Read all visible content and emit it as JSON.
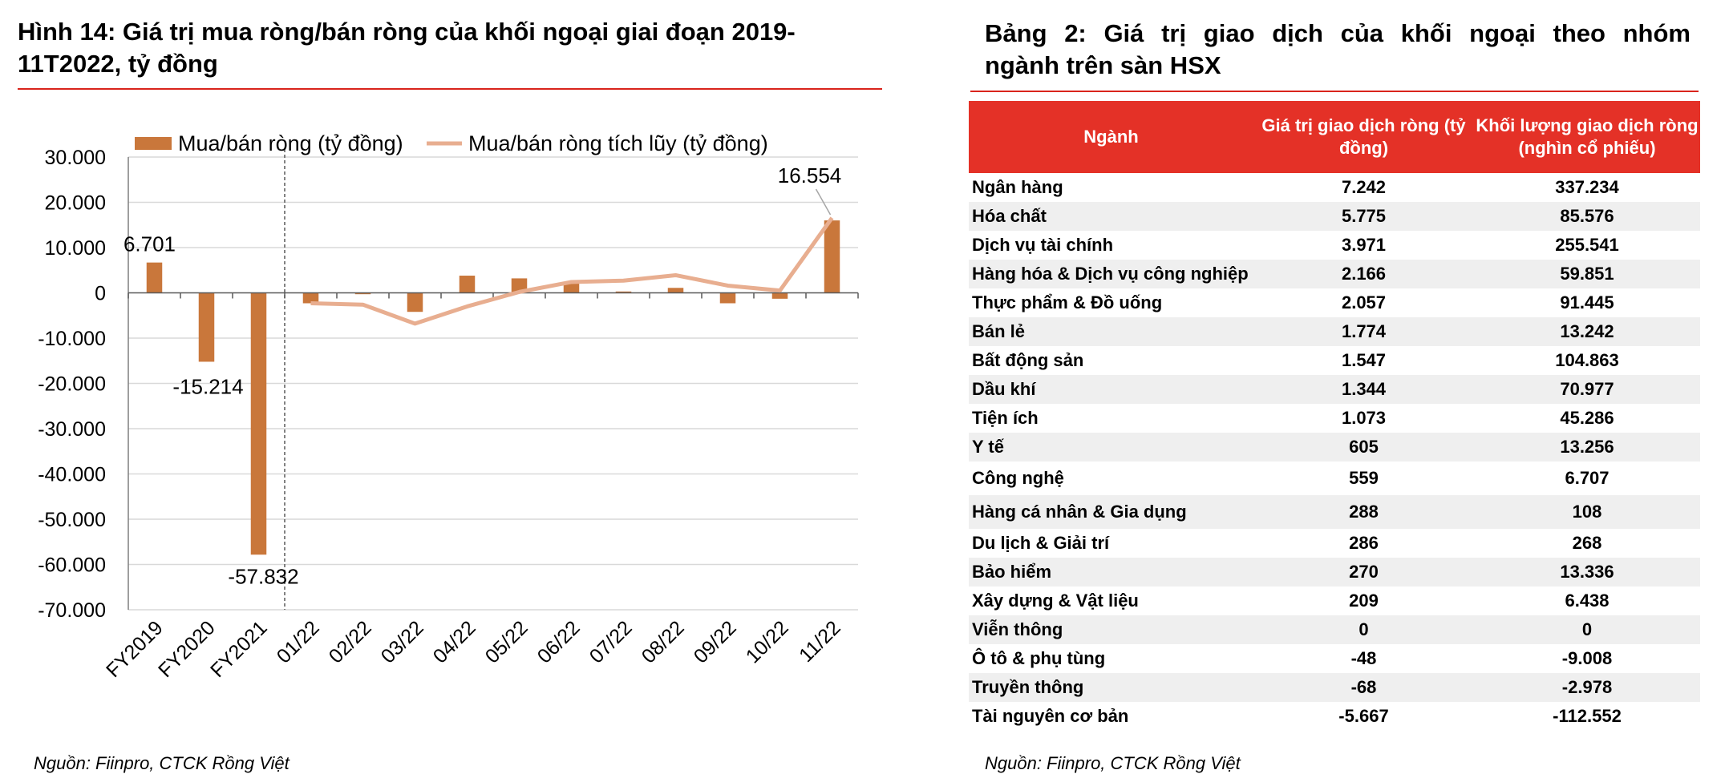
{
  "left_panel": {
    "title_line1": "Hình 14: Giá trị mua ròng/bán ròng của khối ngoại giai đoạn 2019-",
    "title_line2": "11T2022, tỷ đồng",
    "source": "Nguồn: Fiinpro, CTCK Rồng Việt"
  },
  "right_panel": {
    "title_line1": "Bảng 2: Giá trị giao dịch của khối ngoại theo nhóm",
    "title_line2": "ngành trên sàn HSX",
    "source": "Nguồn: Fiinpro, CTCK Rồng Việt",
    "header_fill": "#e43127",
    "table": {
      "headers": [
        "Ngành",
        "Giá trị giao dịch ròng (tỷ đồng)",
        "Khối lượng giao dịch ròng (nghìn cổ phiếu)"
      ],
      "rows": [
        [
          "Ngân hàng",
          "7.242",
          "337.234"
        ],
        [
          "Hóa chất",
          "5.775",
          "85.576"
        ],
        [
          "Dịch vụ tài chính",
          "3.971",
          "255.541"
        ],
        [
          "Hàng hóa & Dịch vụ công nghiệp",
          "2.166",
          "59.851"
        ],
        [
          "Thực phẩm & Đồ uống",
          "2.057",
          "91.445"
        ],
        [
          "Bán lẻ",
          "1.774",
          "13.242"
        ],
        [
          "Bất động sản",
          "1.547",
          "104.863"
        ],
        [
          "Dầu khí",
          "1.344",
          "70.977"
        ],
        [
          "Tiện ích",
          "1.073",
          "45.286"
        ],
        [
          "Y tế",
          "605",
          "13.256"
        ],
        [
          "Công nghệ",
          "559",
          "6.707"
        ],
        [
          "Hàng cá nhân & Gia dụng",
          "288",
          "108"
        ],
        [
          "Du lịch & Giải trí",
          "286",
          "268"
        ],
        [
          "Bảo hiểm",
          "270",
          "13.336"
        ],
        [
          "Xây dựng & Vật liệu",
          "209",
          "6.438"
        ],
        [
          "Viễn thông",
          "0",
          "0"
        ],
        [
          "Ô tô & phụ tùng",
          "-48",
          "-9.008"
        ],
        [
          "Truyền thông",
          "-68",
          "-2.978"
        ],
        [
          "Tài nguyên cơ bản",
          "-5.667",
          "-112.552"
        ]
      ]
    }
  },
  "chart_data": {
    "type": "bar",
    "categories": [
      "FY2019",
      "FY2020",
      "FY2021",
      "01/22",
      "02/22",
      "03/22",
      "04/22",
      "05/22",
      "06/22",
      "07/22",
      "08/22",
      "09/22",
      "10/22",
      "11/22"
    ],
    "series": [
      {
        "name": "Mua/bán ròng (tỷ đồng)",
        "type": "bar",
        "color": "#c9773b",
        "values": [
          6701,
          -15214,
          -57832,
          -2300,
          -300,
          -4200,
          3800,
          3200,
          2200,
          300,
          1100,
          -2300,
          -1300,
          16000
        ]
      },
      {
        "name": "Mua/bán ròng tích lũy (tỷ đồng)",
        "type": "line",
        "color": "#e8ae90",
        "start_index": 3,
        "values": [
          null,
          null,
          null,
          -2300,
          -2600,
          -6800,
          -3000,
          200,
          2400,
          2700,
          3900,
          1600,
          500,
          16554
        ]
      }
    ],
    "data_labels": [
      {
        "index": 0,
        "text": "6.701"
      },
      {
        "index": 1,
        "text": "-15.214"
      },
      {
        "index": 2,
        "text": "-57.832"
      },
      {
        "index": 13,
        "text": "16.554"
      }
    ],
    "y_ticks": [
      "30.000",
      "20.000",
      "10.000",
      "0",
      "-10.000",
      "-20.000",
      "-30.000",
      "-40.000",
      "-50.000",
      "-60.000",
      "-70.000"
    ],
    "ylim": [
      -70000,
      30000
    ],
    "grid": true,
    "legend": "top",
    "divider_after": "FY2021"
  }
}
